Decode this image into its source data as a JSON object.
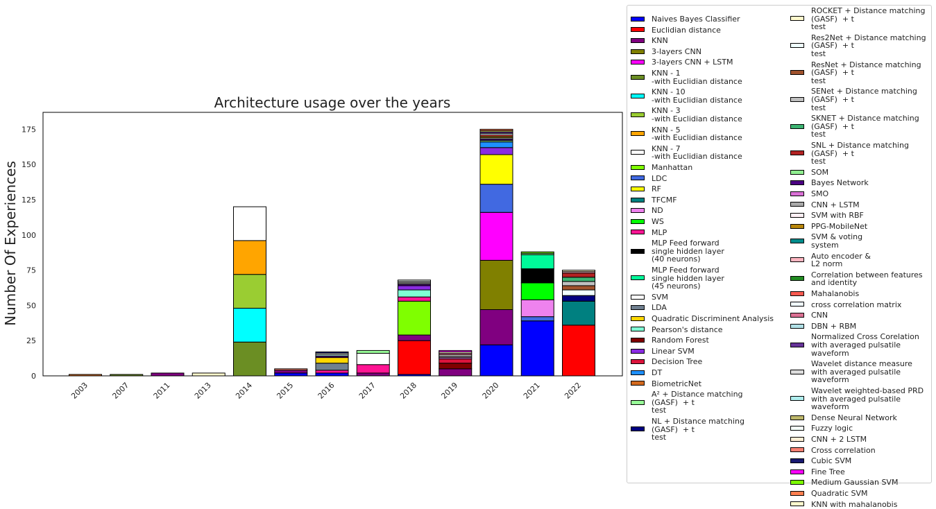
{
  "chart_data": {
    "type": "bar",
    "stacked": true,
    "title": "Architecture usage over the years",
    "xlabel": "",
    "ylabel": "Number Of Experiences",
    "categories": [
      "2003",
      "2007",
      "2011",
      "2013",
      "2014",
      "2015",
      "2016",
      "2017",
      "2018",
      "2019",
      "2020",
      "2021",
      "2022"
    ],
    "ylim": [
      0,
      187
    ],
    "yticks": [
      0,
      25,
      50,
      75,
      100,
      125,
      150,
      175
    ],
    "grid": false,
    "legend_placement": "outside right",
    "series": [
      {
        "name": "Naives Bayes Classifier",
        "color": "#0000ff",
        "values": [
          0,
          0,
          0,
          0,
          0,
          2,
          2,
          0,
          1,
          0,
          22,
          39,
          0
        ]
      },
      {
        "name": "Euclidian distance",
        "color": "#ff0000",
        "values": [
          0,
          0,
          0,
          0,
          0,
          0,
          0,
          0,
          24,
          0,
          0,
          0,
          36
        ]
      },
      {
        "name": "KNN",
        "color": "#800080",
        "values": [
          0,
          0,
          2,
          0,
          0,
          2,
          0,
          2,
          4,
          5,
          25,
          0,
          0
        ]
      },
      {
        "name": "3-layers CNN",
        "color": "#808000",
        "values": [
          0,
          0,
          0,
          0,
          0,
          0,
          0,
          0,
          0,
          0,
          35,
          0,
          0
        ]
      },
      {
        "name": "3-layers CNN + LSTM",
        "color": "#ff00ff",
        "values": [
          0,
          0,
          0,
          0,
          0,
          0,
          0,
          0,
          0,
          0,
          34,
          0,
          0
        ]
      },
      {
        "name": "KNN - 1\n-with Euclidian distance",
        "color": "#6b8e23",
        "values": [
          0,
          1,
          0,
          0,
          24,
          0,
          0,
          0,
          0,
          0,
          0,
          0,
          0
        ]
      },
      {
        "name": "KNN - 10\n-with Euclidian distance",
        "color": "#00ffff",
        "values": [
          0,
          0,
          0,
          0,
          24,
          0,
          0,
          0,
          0,
          0,
          0,
          0,
          0
        ]
      },
      {
        "name": "KNN - 3\n-with Euclidian distance",
        "color": "#9acd32",
        "values": [
          0,
          0,
          0,
          0,
          24,
          0,
          0,
          0,
          0,
          0,
          0,
          0,
          0
        ]
      },
      {
        "name": "KNN - 5\n-with Euclidian distance",
        "color": "#ffa500",
        "values": [
          0,
          0,
          0,
          0,
          24,
          0,
          0,
          0,
          0,
          0,
          0,
          0,
          0
        ]
      },
      {
        "name": "KNN - 7\n-with Euclidian distance",
        "color": "#ffffff",
        "values": [
          0,
          0,
          0,
          0,
          24,
          0,
          0,
          0,
          0,
          0,
          0,
          0,
          0
        ]
      },
      {
        "name": "Manhattan",
        "color": "#7fff00",
        "values": [
          0,
          0,
          0,
          0,
          0,
          0,
          0,
          0,
          24,
          0,
          0,
          0,
          0
        ]
      },
      {
        "name": "LDC",
        "color": "#4169e1",
        "values": [
          0,
          0,
          0,
          0,
          0,
          0,
          0,
          0,
          0,
          0,
          20,
          3,
          0
        ]
      },
      {
        "name": "RF",
        "color": "#ffff00",
        "values": [
          0,
          0,
          0,
          0,
          0,
          0,
          0,
          0,
          0,
          0,
          21,
          0,
          0
        ]
      },
      {
        "name": "TFCMF",
        "color": "#008080",
        "values": [
          0,
          0,
          0,
          0,
          0,
          0,
          0,
          0,
          0,
          0,
          0,
          0,
          17
        ]
      },
      {
        "name": "ND",
        "color": "#ee82ee",
        "values": [
          0,
          0,
          0,
          0,
          0,
          0,
          0,
          0,
          0,
          0,
          0,
          12,
          0
        ]
      },
      {
        "name": "WS",
        "color": "#00ff00",
        "values": [
          0,
          0,
          0,
          0,
          0,
          0,
          0,
          0,
          0,
          0,
          0,
          12,
          0
        ]
      },
      {
        "name": "MLP",
        "color": "#ff1493",
        "values": [
          0,
          0,
          0,
          0,
          0,
          0,
          2,
          6,
          3,
          0,
          0,
          0,
          0
        ]
      },
      {
        "name": "MLP Feed forward\nsingle hidden layer\n(40 neurons)",
        "color": "#000000",
        "values": [
          0,
          0,
          0,
          0,
          0,
          0,
          0,
          0,
          0,
          0,
          0,
          10,
          0
        ]
      },
      {
        "name": "MLP Feed forward\nsingle hidden layer\n(45 neurons)",
        "color": "#00fa9a",
        "values": [
          0,
          0,
          0,
          0,
          0,
          0,
          0,
          0,
          0,
          0,
          0,
          10,
          0
        ]
      },
      {
        "name": "SVM",
        "color": "#ffffff",
        "values": [
          0,
          0,
          0,
          0,
          0,
          0,
          0,
          8,
          0,
          0,
          0,
          0,
          0
        ]
      },
      {
        "name": "LDA",
        "color": "#708090",
        "values": [
          0,
          0,
          0,
          0,
          0,
          0,
          5,
          0,
          0,
          0,
          0,
          0,
          0
        ]
      },
      {
        "name": "Quadratic Discriminent Analysis",
        "color": "#ffd700",
        "values": [
          0,
          0,
          0,
          0,
          0,
          0,
          4,
          0,
          0,
          0,
          0,
          0,
          0
        ]
      },
      {
        "name": "Pearson's distance",
        "color": "#7fffd4",
        "values": [
          0,
          0,
          0,
          0,
          0,
          0,
          0,
          0,
          5,
          0,
          0,
          0,
          0
        ]
      },
      {
        "name": "Random Forest",
        "color": "#800000",
        "values": [
          0,
          0,
          0,
          0,
          0,
          0,
          0,
          0,
          0,
          4,
          0,
          0,
          0
        ]
      },
      {
        "name": "Linear SVM",
        "color": "#8a2be2",
        "values": [
          0,
          0,
          0,
          0,
          0,
          0,
          0,
          0,
          3,
          0,
          5,
          0,
          0
        ]
      },
      {
        "name": "Decision Tree",
        "color": "#dc143c",
        "values": [
          0,
          0,
          0,
          0,
          0,
          0,
          0,
          0,
          0,
          3,
          0,
          0,
          0
        ]
      },
      {
        "name": "DT",
        "color": "#1e90ff",
        "values": [
          0,
          0,
          0,
          0,
          0,
          0,
          0,
          0,
          0,
          0,
          4,
          0,
          0
        ]
      },
      {
        "name": "BiometricNet",
        "color": "#d2691e",
        "values": [
          1,
          0,
          0,
          0,
          0,
          0,
          0,
          0,
          0,
          0,
          0,
          0,
          0
        ]
      },
      {
        "name": "A² + Distance matching\n(GASF)  + t\ntest",
        "color": "#98fb98",
        "values": [
          0,
          0,
          0,
          0,
          0,
          0,
          0,
          2,
          0,
          0,
          0,
          0,
          0
        ]
      },
      {
        "name": "NL + Distance matching\n(GASF)  + t\ntest",
        "color": "#000080",
        "values": [
          0,
          0,
          0,
          0,
          0,
          0,
          0,
          0,
          0,
          0,
          0,
          0,
          4
        ]
      },
      {
        "name": "ROCKET + Distance matching\n(GASF)  + t\ntest",
        "color": "#fffacd",
        "values": [
          0,
          0,
          0,
          2,
          0,
          0,
          0,
          0,
          0,
          0,
          0,
          0,
          0
        ]
      },
      {
        "name": "Res2Net + Distance matching\n(GASF)  + t\ntest",
        "color": "#f0ffff",
        "values": [
          0,
          0,
          0,
          0,
          0,
          0,
          0,
          0,
          0,
          0,
          0,
          0,
          4
        ]
      },
      {
        "name": "ResNet + Distance matching\n(GASF)  + t\ntest",
        "color": "#a0522d",
        "values": [
          0,
          0,
          0,
          0,
          0,
          0,
          0,
          0,
          0,
          0,
          0,
          0,
          3
        ]
      },
      {
        "name": "SENet + Distance matching\n(GASF)  + t\ntest",
        "color": "#c0c0c0",
        "values": [
          0,
          0,
          0,
          0,
          0,
          0,
          0,
          0,
          0,
          0,
          0,
          0,
          3
        ]
      },
      {
        "name": "SKNET + Distance matching\n(GASF)  + t\ntest",
        "color": "#3cb371",
        "values": [
          0,
          0,
          0,
          0,
          0,
          0,
          0,
          0,
          0,
          0,
          0,
          0,
          3
        ]
      },
      {
        "name": "SNL + Distance matching\n(GASF)  + t\ntest",
        "color": "#b22222",
        "values": [
          0,
          0,
          0,
          0,
          0,
          0,
          0,
          0,
          0,
          0,
          0,
          0,
          3
        ]
      },
      {
        "name": "SOM",
        "color": "#90ee90",
        "values": [
          0,
          0,
          0,
          0,
          0,
          0,
          0,
          0,
          0,
          0,
          1,
          1,
          0
        ]
      },
      {
        "name": "Bayes Network",
        "color": "#4b0082",
        "values": [
          0,
          0,
          0,
          0,
          0,
          0,
          1,
          0,
          1,
          0,
          1,
          0,
          0
        ]
      },
      {
        "name": "SMO",
        "color": "#da70d6",
        "values": [
          0,
          0,
          0,
          0,
          0,
          0,
          0,
          0,
          0,
          1,
          0,
          0,
          0
        ]
      },
      {
        "name": "CNN + LSTM",
        "color": "#a9a9a9",
        "values": [
          0,
          0,
          0,
          0,
          0,
          0,
          0,
          0,
          1,
          1,
          1,
          0,
          0
        ]
      },
      {
        "name": "SVM with RBF",
        "color": "#fff0f5",
        "values": [
          0,
          0,
          0,
          0,
          0,
          0,
          0,
          0,
          0,
          1,
          0,
          0,
          0
        ]
      },
      {
        "name": "PPG-MobileNet",
        "color": "#b8860b",
        "values": [
          0,
          0,
          0,
          0,
          0,
          0,
          0,
          0,
          0,
          0,
          1,
          0,
          0
        ]
      },
      {
        "name": "SVM & voting\nsystem",
        "color": "#008b8b",
        "values": [
          0,
          0,
          0,
          0,
          0,
          0,
          0,
          0,
          0,
          0,
          0,
          0,
          0
        ]
      },
      {
        "name": "Auto encoder &\nL2 norm",
        "color": "#ffb6c1",
        "values": [
          0,
          0,
          0,
          0,
          0,
          0,
          0,
          0,
          0,
          0,
          0,
          0,
          1
        ]
      },
      {
        "name": "Correlation between features\nand identity",
        "color": "#228b22",
        "values": [
          0,
          0,
          0,
          0,
          0,
          0,
          0,
          0,
          0,
          0,
          0,
          0,
          0
        ]
      },
      {
        "name": "Mahalanobis",
        "color": "#fa5a50",
        "values": [
          0,
          0,
          0,
          0,
          0,
          0,
          0,
          0,
          0,
          0,
          1,
          0,
          0
        ]
      },
      {
        "name": "cross correlation matrix",
        "color": "#f0f8ff",
        "values": [
          0,
          0,
          0,
          0,
          0,
          0,
          0,
          0,
          0,
          0,
          1,
          0,
          0
        ]
      },
      {
        "name": "CNN",
        "color": "#db7093",
        "values": [
          0,
          0,
          0,
          0,
          0,
          0,
          0,
          0,
          0,
          1,
          0,
          0,
          0
        ]
      },
      {
        "name": "DBN + RBM",
        "color": "#b0e0e6",
        "values": [
          0,
          0,
          0,
          0,
          0,
          0,
          1,
          0,
          0,
          0,
          0,
          0,
          0
        ]
      },
      {
        "name": "Normalized Cross Corelation\nwith averaged pulsatile\nwaveform",
        "color": "#663399",
        "values": [
          0,
          0,
          0,
          0,
          0,
          0,
          0,
          0,
          0,
          0,
          1,
          0,
          0
        ]
      },
      {
        "name": "Wavelet distance measure\nwith averaged pulsatile\nwaveform",
        "color": "#dcdcdc",
        "values": [
          0,
          0,
          0,
          0,
          0,
          0,
          0,
          0,
          1,
          0,
          0,
          0,
          0
        ]
      },
      {
        "name": "Wavelet weighted-based PRD\nwith averaged pulsatile\nwaveform",
        "color": "#afeeee",
        "values": [
          0,
          0,
          0,
          0,
          0,
          0,
          0,
          0,
          0,
          0,
          0,
          0,
          0
        ]
      },
      {
        "name": "Dense Neural Network",
        "color": "#bdb76b",
        "values": [
          0,
          0,
          0,
          0,
          0,
          0,
          0,
          0,
          0,
          0,
          1,
          0,
          0
        ]
      },
      {
        "name": "Fuzzy logic",
        "color": "#f5fffa",
        "values": [
          0,
          0,
          0,
          0,
          0,
          0,
          1,
          0,
          1,
          0,
          0,
          0,
          0
        ]
      },
      {
        "name": "CNN + 2 LSTM",
        "color": "#ffefd5",
        "values": [
          0,
          0,
          0,
          0,
          0,
          0,
          0,
          0,
          0,
          1,
          0,
          0,
          0
        ]
      },
      {
        "name": "Cross correlation",
        "color": "#fa8072",
        "values": [
          0,
          0,
          0,
          0,
          0,
          1,
          0,
          0,
          0,
          0,
          0,
          0,
          0
        ]
      },
      {
        "name": "Cubic SVM",
        "color": "#191970",
        "values": [
          0,
          0,
          0,
          0,
          0,
          0,
          1,
          0,
          0,
          0,
          0,
          0,
          0
        ]
      },
      {
        "name": "Fine Tree",
        "color": "#ff00ff",
        "values": [
          0,
          0,
          0,
          0,
          0,
          0,
          0,
          0,
          0,
          1,
          0,
          0,
          0
        ]
      },
      {
        "name": "Medium Gaussian SVM",
        "color": "#7cfc00",
        "values": [
          0,
          0,
          0,
          0,
          0,
          0,
          0,
          0,
          0,
          0,
          0,
          1,
          0
        ]
      },
      {
        "name": "Quadratic SVM",
        "color": "#ff7f50",
        "values": [
          0,
          0,
          0,
          0,
          0,
          0,
          0,
          0,
          0,
          0,
          1,
          0,
          0
        ]
      },
      {
        "name": "KNN with mahalanobis",
        "color": "#fffacd",
        "values": [
          0,
          0,
          0,
          0,
          0,
          0,
          0,
          0,
          0,
          0,
          0,
          0,
          1
        ]
      }
    ]
  }
}
